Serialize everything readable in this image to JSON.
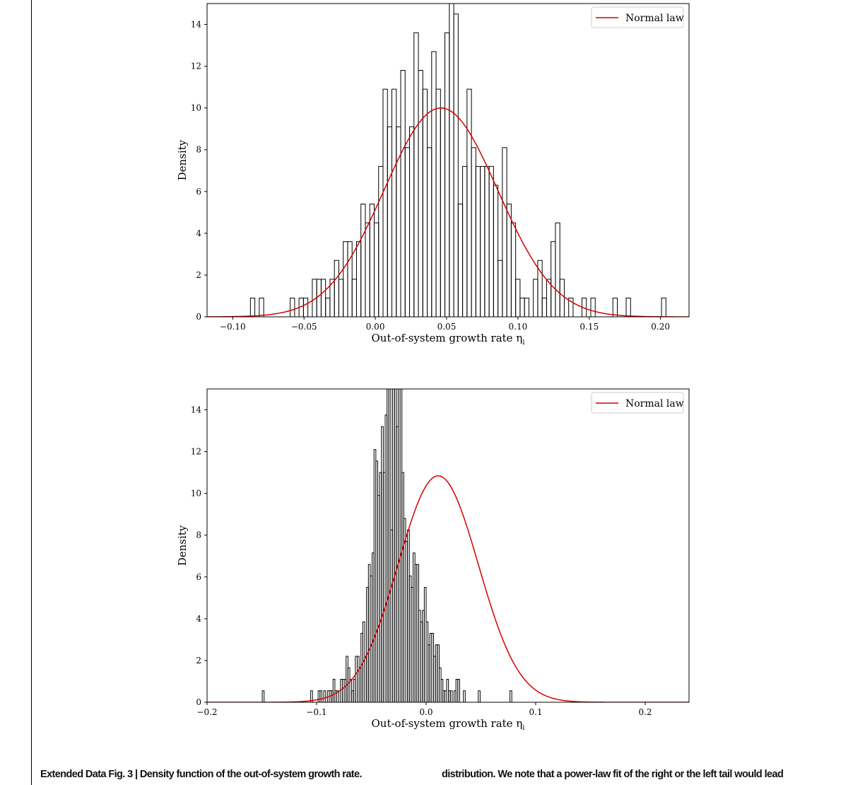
{
  "caption": {
    "label": "Extended Data Fig. 3 | Density function of the out-of-system growth rate.",
    "continuation": "distribution. We note that a power-law fit of the right or the left tail would lead"
  },
  "colors": {
    "hist": "#000000",
    "fit": "#d40000"
  },
  "chart_data": [
    {
      "type": "histogram",
      "xlabel": "Out-of-system growth rate η",
      "xlabel_sub": "i",
      "ylabel": "Density",
      "legend": "Normal law",
      "legend_position": "top-right",
      "xlim": [
        -0.118,
        0.22
      ],
      "ylim": [
        0,
        15
      ],
      "xticks": [
        -0.1,
        -0.05,
        0.0,
        0.05,
        0.1,
        0.15,
        0.2
      ],
      "xtick_labels": [
        "−0.10",
        "−0.05",
        "0.00",
        "0.05",
        "0.10",
        "0.15",
        "0.20"
      ],
      "yticks": [
        0,
        2,
        4,
        6,
        8,
        10,
        12,
        14
      ],
      "ytick_labels": [
        "0",
        "2",
        "4",
        "6",
        "8",
        "10",
        "12",
        "14"
      ],
      "hist_x": [
        -0.0907,
        -0.0876,
        -0.0845,
        -0.0814,
        -0.0783,
        -0.0752,
        -0.0721,
        -0.069,
        -0.0659,
        -0.0628,
        -0.0597,
        -0.0566,
        -0.0535,
        -0.0504,
        -0.0473,
        -0.0442,
        -0.0411,
        -0.038,
        -0.0349,
        -0.0318,
        -0.0287,
        -0.0256,
        -0.0225,
        -0.0194,
        -0.0163,
        -0.0132,
        -0.0101,
        -0.007,
        -0.0039,
        -0.0008,
        0.0023,
        0.0054,
        0.0085,
        0.0116,
        0.0147,
        0.0178,
        0.0209,
        0.024,
        0.0271,
        0.0302,
        0.0333,
        0.0364,
        0.0395,
        0.0426,
        0.0457,
        0.0488,
        0.0519,
        0.055,
        0.0581,
        0.0612,
        0.0643,
        0.0674,
        0.0705,
        0.0736,
        0.0767,
        0.0798,
        0.0829,
        0.086,
        0.0891,
        0.0922,
        0.0953,
        0.0984,
        0.1015,
        0.1046,
        0.1077,
        0.1108,
        0.1139,
        0.117,
        0.1201,
        0.1232,
        0.1263,
        0.1294,
        0.1325,
        0.1356,
        0.1387,
        0.1418,
        0.1449,
        0.148,
        0.1511,
        0.1542,
        0.1573,
        0.1604,
        0.1635,
        0.1666,
        0.1697,
        0.1728,
        0.1759,
        0.179,
        0.1821,
        0.1852,
        0.1883,
        0.1914,
        0.1945,
        0.1976,
        0.2007
      ],
      "hist_y": [
        0,
        0.9,
        0,
        0.9,
        0,
        0,
        0,
        0,
        0,
        0,
        0.9,
        0,
        0.9,
        0.9,
        0,
        1.8,
        1.8,
        1.8,
        0.9,
        1.8,
        2.7,
        1.8,
        3.6,
        3.6,
        1.8,
        3.6,
        5.4,
        4.5,
        5.4,
        4.5,
        7.2,
        10.9,
        9.1,
        10.9,
        9.1,
        11.8,
        8.1,
        9.1,
        13.6,
        11.8,
        10.9,
        8.1,
        12.7,
        10.9,
        10.0,
        13.6,
        16.5,
        14.5,
        5.4,
        7.2,
        10.9,
        8.1,
        7.2,
        7.2,
        7.2,
        7.2,
        6.3,
        2.7,
        8.1,
        5.4,
        4.5,
        1.8,
        0.9,
        0.9,
        0,
        1.8,
        2.7,
        0.9,
        1.8,
        3.6,
        4.5,
        1.8,
        0,
        0.9,
        0,
        0,
        0.9,
        0,
        0.9,
        0,
        0,
        0,
        0,
        0.9,
        0,
        0,
        0.9,
        0,
        0,
        0,
        0,
        0,
        0,
        0,
        0.9
      ],
      "hist_width": 0.0031,
      "normal_mu": 0.046,
      "normal_sigma": 0.0399
    },
    {
      "type": "histogram",
      "xlabel": "Out-of-system growth rate η",
      "xlabel_sub": "i",
      "ylabel": "Density",
      "legend": "Normal law",
      "legend_position": "top-right",
      "xlim": [
        -0.2,
        0.24
      ],
      "ylim": [
        0,
        15
      ],
      "xticks": [
        -0.2,
        -0.1,
        0.0,
        0.1,
        0.2
      ],
      "xtick_labels": [
        "−0.2",
        "−0.1",
        "0.0",
        "0.1",
        "0.2"
      ],
      "yticks": [
        0,
        2,
        4,
        6,
        8,
        10,
        12,
        14
      ],
      "ytick_labels": [
        "0",
        "2",
        "4",
        "6",
        "8",
        "10",
        "12",
        "14"
      ],
      "hist_x": [
        -0.17,
        -0.1683,
        -0.1666,
        -0.1649,
        -0.1632,
        -0.1615,
        -0.1598,
        -0.1581,
        -0.1564,
        -0.1547,
        -0.153,
        -0.1513,
        -0.1496,
        -0.1479,
        -0.1462,
        -0.1445,
        -0.1428,
        -0.1411,
        -0.1394,
        -0.1377,
        -0.136,
        -0.1343,
        -0.1326,
        -0.1309,
        -0.1292,
        -0.1275,
        -0.1258,
        -0.1241,
        -0.1224,
        -0.1207,
        -0.119,
        -0.1173,
        -0.1156,
        -0.1139,
        -0.1122,
        -0.1105,
        -0.1088,
        -0.1071,
        -0.1054,
        -0.1037,
        -0.102,
        -0.1003,
        -0.0986,
        -0.0969,
        -0.0952,
        -0.0935,
        -0.0918,
        -0.0901,
        -0.0884,
        -0.0867,
        -0.085,
        -0.0833,
        -0.0816,
        -0.0799,
        -0.0782,
        -0.0765,
        -0.0748,
        -0.0731,
        -0.0714,
        -0.0697,
        -0.068,
        -0.0663,
        -0.0646,
        -0.0629,
        -0.0612,
        -0.0595,
        -0.0578,
        -0.0561,
        -0.0544,
        -0.0527,
        -0.051,
        -0.0493,
        -0.0476,
        -0.0459,
        -0.0442,
        -0.0425,
        -0.0408,
        -0.0391,
        -0.0374,
        -0.0357,
        -0.034,
        -0.0323,
        -0.0306,
        -0.0289,
        -0.0272,
        -0.0255,
        -0.0238,
        -0.0221,
        -0.0204,
        -0.0187,
        -0.017,
        -0.0153,
        -0.0136,
        -0.0119,
        -0.0102,
        -0.0085,
        -0.0068,
        -0.0051,
        -0.0034,
        -0.0017,
        0.0,
        0.0017,
        0.0034,
        0.0051,
        0.0068,
        0.0085,
        0.0102,
        0.0119,
        0.0136,
        0.0153,
        0.017,
        0.0187,
        0.0204,
        0.0221,
        0.0238,
        0.0255,
        0.0272,
        0.0289,
        0.0306,
        0.0323,
        0.034,
        0.0357,
        0.0374,
        0.0391,
        0.0408,
        0.0425,
        0.0442,
        0.0459,
        0.0476,
        0.0493,
        0.051,
        0.0527,
        0.0544,
        0.0561,
        0.0578,
        0.0595,
        0.0612,
        0.0629,
        0.0646,
        0.0663,
        0.068,
        0.0697,
        0.0714,
        0.0731,
        0.0748,
        0.0765,
        0.0782,
        0.0799,
        0.0816,
        0.0833,
        0.085,
        0.0867,
        0.0884,
        0.0901,
        0.0918,
        0.0935,
        0.0952,
        0.0969,
        0.0986,
        0.1003,
        0.102,
        0.1037,
        0.1054,
        0.1071,
        0.1088,
        0.1105,
        0.1122,
        0.1139,
        0.1156,
        0.1173,
        0.119,
        0.1207,
        0.1224,
        0.1241,
        0.1258,
        0.1275,
        0.1292,
        0.1309,
        0.1326,
        0.1343,
        0.136,
        0.1377,
        0.1394,
        0.1411,
        0.1428,
        0.1445,
        0.1462,
        0.1479,
        0.1496,
        0.1513,
        0.153,
        0.1547,
        0.1564,
        0.1581,
        0.1598,
        0.1615,
        0.1632,
        0.1649,
        0.1666,
        0.1683,
        0.17,
        0.1717,
        0.1734,
        0.1751,
        0.1768,
        0.1785,
        0.1802,
        0.1819,
        0.1836,
        0.1853,
        0.187,
        0.1887,
        0.1904
      ],
      "hist_y": [
        0,
        0,
        0,
        0,
        0,
        0,
        0,
        0,
        0,
        0,
        0,
        0,
        0.55,
        0,
        0,
        0,
        0,
        0,
        0,
        0,
        0,
        0,
        0,
        0,
        0,
        0,
        0,
        0,
        0,
        0,
        0,
        0,
        0,
        0,
        0,
        0,
        0,
        0,
        0.55,
        0,
        0,
        0,
        0.55,
        0.55,
        0,
        0.55,
        0,
        0.55,
        0.55,
        0.55,
        1.1,
        0.55,
        0.55,
        0,
        1.1,
        1.1,
        1.1,
        2.2,
        1.65,
        1.1,
        0.55,
        1.1,
        2.2,
        2.2,
        1.65,
        3.3,
        3.85,
        2.2,
        5.5,
        6.6,
        6.05,
        7.15,
        12.1,
        11.55,
        9.9,
        11.0,
        13.2,
        11.0,
        13.75,
        17.6,
        18.7,
        8.25,
        16.5,
        15.95,
        13.2,
        17.6,
        16.5,
        11.0,
        8.8,
        7.7,
        8.25,
        6.05,
        5.5,
        7.15,
        6.6,
        6.6,
        4.4,
        3.85,
        4.4,
        5.5,
        3.85,
        2.75,
        3.3,
        3.3,
        2.2,
        2.75,
        2.75,
        1.65,
        1.1,
        0.55,
        0.55,
        1.1,
        0.55,
        0.55,
        0,
        0.55,
        1.1,
        1.1,
        0,
        0,
        0.55,
        0,
        0,
        0,
        0,
        0,
        0,
        0,
        0.55,
        0,
        0,
        0,
        0,
        0,
        0,
        0,
        0,
        0,
        0,
        0,
        0,
        0,
        0,
        0,
        0,
        0.55,
        0,
        0,
        0,
        0,
        0,
        0,
        0,
        0,
        0,
        0,
        0,
        0,
        0,
        0,
        0,
        0,
        0,
        0,
        0,
        0,
        0,
        0,
        0,
        0,
        0,
        0,
        0,
        0,
        0,
        0,
        0,
        0,
        0,
        0,
        0,
        0,
        0,
        0,
        0,
        0,
        0,
        0,
        0,
        0,
        0,
        0,
        0,
        0,
        0,
        0,
        0,
        0,
        0,
        0,
        0,
        0,
        0,
        0,
        0,
        0,
        0,
        0,
        0,
        0,
        0,
        0,
        0,
        0,
        0,
        0,
        0
      ],
      "hist_width": 0.0017,
      "normal_mu": 0.011,
      "normal_sigma": 0.0368
    }
  ]
}
